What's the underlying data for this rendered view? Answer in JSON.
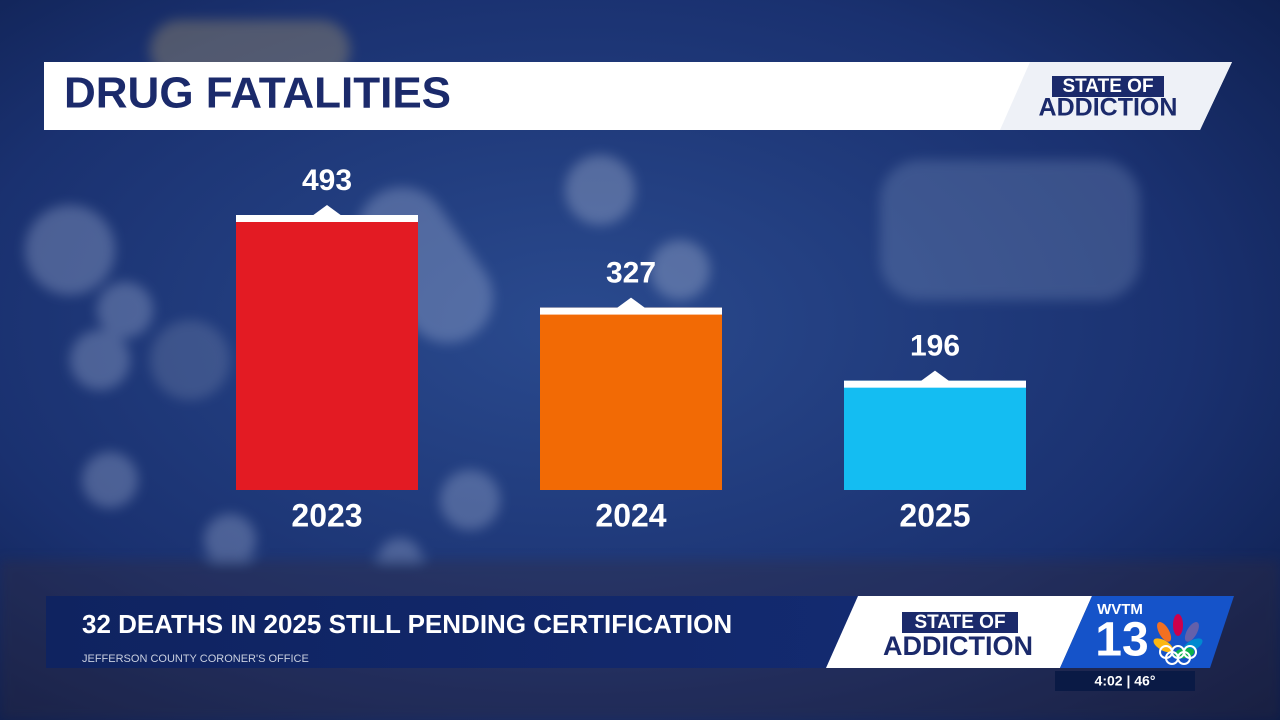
{
  "chart_data": {
    "type": "bar",
    "title": "DRUG FATALITIES",
    "categories": [
      "2023",
      "2024",
      "2025"
    ],
    "values": [
      493,
      327,
      196
    ],
    "colors": [
      "#e31b23",
      "#f26a05",
      "#14bdf2"
    ]
  },
  "header": {
    "badge": [
      "STATE OF",
      "ADDICTION"
    ]
  },
  "lower_third": {
    "headline": "32 DEATHS IN 2025 STILL PENDING CERTIFICATION",
    "source": "JEFFERSON COUNTY CORONER'S OFFICE",
    "badge": [
      "STATE OF",
      "ADDICTION"
    ],
    "station": "WVTM",
    "channel": "13",
    "time_temp": "4:02 | 46°"
  }
}
